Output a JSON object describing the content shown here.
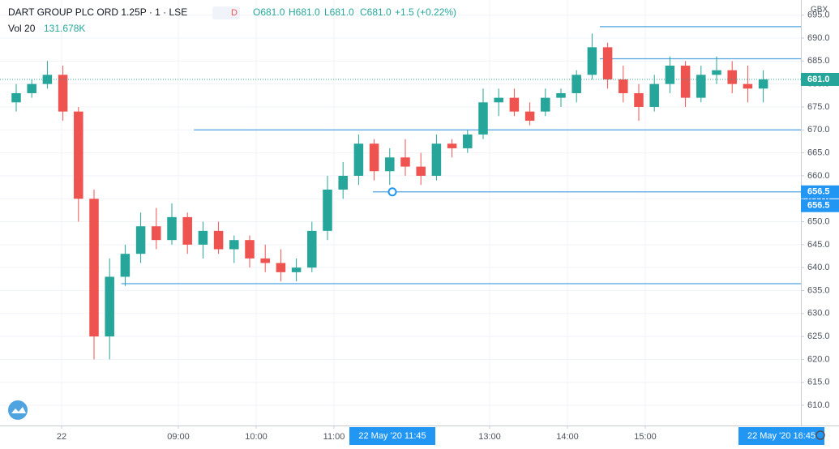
{
  "chart_data": {
    "type": "candlestick",
    "title": "DART GROUP PLC ORD 1.25P · 1 · LSE",
    "interval_badge": "D",
    "ohlc_readout": [
      "O681.0",
      "H681.0",
      "L681.0",
      "C681.0",
      "+1.5 (+0.22%)"
    ],
    "volume_label": "Vol 20",
    "volume_value": "131.678K",
    "currency": "GBX",
    "up_color": "#26a69a",
    "down_color": "#ef5350",
    "level_color": "#4fa3e0",
    "ylim": [
      605.6,
      698.3
    ],
    "yticks": [
      {
        "value": 610,
        "label": "610.0"
      },
      {
        "value": 615,
        "label": "615.0"
      },
      {
        "value": 620,
        "label": "620.0"
      },
      {
        "value": 625,
        "label": "625.0"
      },
      {
        "value": 630,
        "label": "630.0"
      },
      {
        "value": 635,
        "label": "635.0"
      },
      {
        "value": 640,
        "label": "640.0"
      },
      {
        "value": 645,
        "label": "645.0"
      },
      {
        "value": 650,
        "label": "650.0"
      },
      {
        "value": 655,
        "label": "655.0"
      },
      {
        "value": 660,
        "label": "660.0"
      },
      {
        "value": 665,
        "label": "665.0"
      },
      {
        "value": 670,
        "label": "670.0"
      },
      {
        "value": 675,
        "label": "675.0"
      },
      {
        "value": 680,
        "label": "680.0"
      },
      {
        "value": 685,
        "label": "685.0"
      },
      {
        "value": 690,
        "label": "690.0"
      },
      {
        "value": 695,
        "label": "695.0"
      }
    ],
    "xlim": [
      402.5,
      1020
    ],
    "xticks": [
      {
        "value": 450,
        "label": "22"
      },
      {
        "value": 540,
        "label": "09:00"
      },
      {
        "value": 600,
        "label": "10:00"
      },
      {
        "value": 660,
        "label": "11:00"
      },
      {
        "value": 780,
        "label": "13:00"
      },
      {
        "value": 840,
        "label": "14:00"
      },
      {
        "value": 900,
        "label": "15:00"
      }
    ],
    "grid": true,
    "x": [
      415,
      427,
      439,
      451,
      463,
      475,
      487,
      499,
      511,
      523,
      535,
      547,
      559,
      571,
      583,
      595,
      607,
      619,
      631,
      643,
      655,
      667,
      679,
      691,
      703,
      715,
      727,
      739,
      751,
      763,
      775,
      787,
      799,
      811,
      823,
      835,
      847,
      859,
      871,
      883,
      895,
      907,
      919,
      931,
      943,
      955,
      967,
      979,
      991
    ],
    "open": [
      676,
      678,
      680,
      682,
      674,
      655,
      625,
      638,
      643,
      649,
      646,
      651,
      645,
      648,
      644,
      646,
      642,
      641,
      639,
      640,
      648,
      657,
      660,
      667,
      661,
      664,
      662,
      660,
      667,
      666,
      669,
      676,
      677,
      674,
      674,
      677,
      678,
      682,
      688,
      681,
      678,
      675,
      680,
      684,
      677,
      682,
      683,
      680,
      679
    ],
    "high": [
      680,
      681,
      685,
      684,
      675,
      657,
      642,
      645,
      652,
      653,
      654,
      652,
      650,
      650,
      647,
      647,
      645,
      644,
      642,
      650,
      660,
      663,
      669,
      668,
      666,
      668,
      665,
      669,
      668,
      670,
      679,
      679,
      679,
      676,
      679,
      679,
      683,
      691,
      689,
      684,
      680,
      682,
      686,
      685,
      684,
      686,
      685,
      684,
      683
    ],
    "low": [
      674,
      677,
      679,
      672,
      650,
      620,
      620,
      636,
      641,
      644,
      645,
      643,
      642,
      643,
      641,
      640,
      639,
      637,
      637,
      639,
      646,
      655,
      658,
      659,
      658,
      660,
      658,
      659,
      664,
      665,
      668,
      673,
      673,
      671,
      673,
      675,
      676,
      681,
      679,
      676,
      672,
      674,
      678,
      675,
      676,
      680,
      678,
      676,
      676
    ],
    "close": [
      678,
      680,
      682,
      674,
      655,
      625,
      638,
      643,
      649,
      646,
      651,
      645,
      648,
      644,
      646,
      642,
      641,
      639,
      640,
      648,
      657,
      660,
      667,
      661,
      664,
      662,
      660,
      667,
      666,
      669,
      676,
      677,
      674,
      672,
      677,
      678,
      682,
      688,
      681,
      678,
      675,
      680,
      684,
      677,
      682,
      683,
      680,
      679,
      681
    ],
    "levels": [
      {
        "y": 692.5,
        "x_start": 865
      },
      {
        "y": 685.5,
        "x_start": 865
      },
      {
        "y": 670,
        "x_start": 552
      },
      {
        "y": 656.5,
        "x_start": 690
      },
      {
        "y": 636.5,
        "x_start": 496
      }
    ],
    "last_price": {
      "value": 681.0,
      "label": "681.0"
    },
    "price_labels": [
      {
        "value": 656.5,
        "label": "656.5"
      },
      {
        "value": 656.5,
        "label": "656.5"
      }
    ],
    "time_labels": [
      {
        "value": 705,
        "label": "22 May '20   11:45"
      },
      {
        "value": 1005,
        "label": "22 May '20   16:45"
      }
    ]
  }
}
